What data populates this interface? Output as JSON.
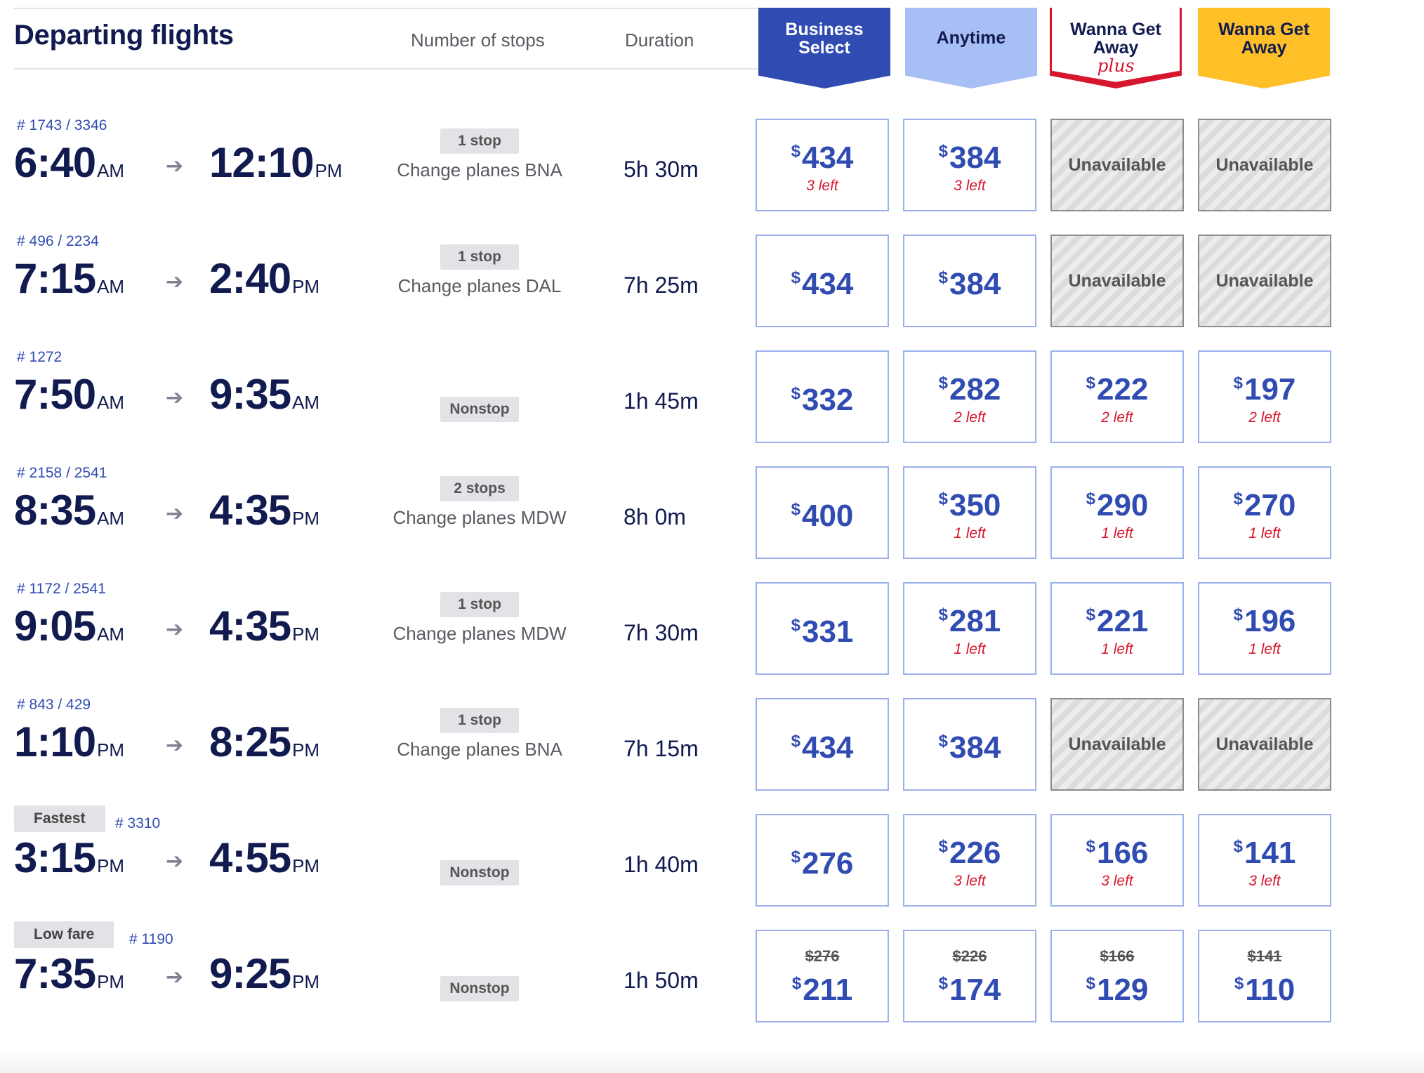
{
  "header": {
    "title": "Departing flights",
    "col_stops": "Number of stops",
    "col_duration": "Duration",
    "fare_classes": {
      "business_select": [
        "Business",
        "Select"
      ],
      "anytime": "Anytime",
      "wanna_get_away_plus": [
        "Wanna Get",
        "Away",
        "plus"
      ],
      "wanna_get_away": [
        "Wanna Get",
        "Away"
      ]
    }
  },
  "colors": {
    "navy": "#111b4f",
    "blue": "#304cb2",
    "light_blue": "#a7bff5",
    "red": "#d6162c",
    "yellow": "#ffbf27"
  },
  "icons": {
    "arrow": "arrow-right-icon"
  },
  "flights": [
    {
      "number": "# 1743 / 3346",
      "tag": "",
      "dep_time": "6:40",
      "dep_ampm": "AM",
      "arr_time": "12:10",
      "arr_ampm": "PM",
      "stops": "1 stop",
      "change": "Change planes BNA",
      "duration": "5h 30m",
      "fares": [
        {
          "price": "434",
          "left": "3 left"
        },
        {
          "price": "384",
          "left": "3 left"
        },
        {
          "unavailable": "Unavailable"
        },
        {
          "unavailable": "Unavailable"
        }
      ]
    },
    {
      "number": "# 496 / 2234",
      "tag": "",
      "dep_time": "7:15",
      "dep_ampm": "AM",
      "arr_time": "2:40",
      "arr_ampm": "PM",
      "stops": "1 stop",
      "change": "Change planes DAL",
      "duration": "7h 25m",
      "fares": [
        {
          "price": "434"
        },
        {
          "price": "384"
        },
        {
          "unavailable": "Unavailable"
        },
        {
          "unavailable": "Unavailable"
        }
      ]
    },
    {
      "number": "# 1272",
      "tag": "",
      "dep_time": "7:50",
      "dep_ampm": "AM",
      "arr_time": "9:35",
      "arr_ampm": "AM",
      "stops": "Nonstop",
      "change": "",
      "duration": "1h 45m",
      "fares": [
        {
          "price": "332"
        },
        {
          "price": "282",
          "left": "2 left"
        },
        {
          "price": "222",
          "left": "2 left"
        },
        {
          "price": "197",
          "left": "2 left"
        }
      ]
    },
    {
      "number": "# 2158 / 2541",
      "tag": "",
      "dep_time": "8:35",
      "dep_ampm": "AM",
      "arr_time": "4:35",
      "arr_ampm": "PM",
      "stops": "2 stops",
      "change": "Change planes MDW",
      "duration": "8h 0m",
      "fares": [
        {
          "price": "400"
        },
        {
          "price": "350",
          "left": "1 left"
        },
        {
          "price": "290",
          "left": "1 left"
        },
        {
          "price": "270",
          "left": "1 left"
        }
      ]
    },
    {
      "number": "# 1172 / 2541",
      "tag": "",
      "dep_time": "9:05",
      "dep_ampm": "AM",
      "arr_time": "4:35",
      "arr_ampm": "PM",
      "stops": "1 stop",
      "change": "Change planes MDW",
      "duration": "7h 30m",
      "fares": [
        {
          "price": "331"
        },
        {
          "price": "281",
          "left": "1 left"
        },
        {
          "price": "221",
          "left": "1 left"
        },
        {
          "price": "196",
          "left": "1 left"
        }
      ]
    },
    {
      "number": "# 843 / 429",
      "tag": "",
      "dep_time": "1:10",
      "dep_ampm": "PM",
      "arr_time": "8:25",
      "arr_ampm": "PM",
      "stops": "1 stop",
      "change": "Change planes BNA",
      "duration": "7h 15m",
      "fares": [
        {
          "price": "434"
        },
        {
          "price": "384"
        },
        {
          "unavailable": "Unavailable"
        },
        {
          "unavailable": "Unavailable"
        }
      ]
    },
    {
      "number": "# 3310",
      "tag": "Fastest",
      "dep_time": "3:15",
      "dep_ampm": "PM",
      "arr_time": "4:55",
      "arr_ampm": "PM",
      "stops": "Nonstop",
      "change": "",
      "duration": "1h 40m",
      "fares": [
        {
          "price": "276"
        },
        {
          "price": "226",
          "left": "3 left"
        },
        {
          "price": "166",
          "left": "3 left"
        },
        {
          "price": "141",
          "left": "3 left"
        }
      ]
    },
    {
      "number": "# 1190",
      "tag": "Low fare",
      "dep_time": "7:35",
      "dep_ampm": "PM",
      "arr_time": "9:25",
      "arr_ampm": "PM",
      "stops": "Nonstop",
      "change": "",
      "duration": "1h 50m",
      "fares": [
        {
          "price": "211",
          "old": "$276"
        },
        {
          "price": "174",
          "old": "$226"
        },
        {
          "price": "129",
          "old": "$166"
        },
        {
          "price": "110",
          "old": "$141"
        }
      ]
    }
  ]
}
